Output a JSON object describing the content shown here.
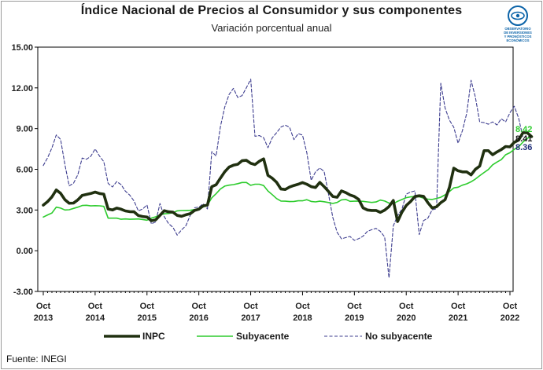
{
  "title": "Índice Nacional de Precios al Consumidor y sus componentes",
  "subtitle": "Variación porcentual anual",
  "source": "Fuente: INEGI",
  "logo": {
    "text_lines": [
      "OBSERVATORIO",
      "DE INVERSIONES",
      "Y PRONÓSTICOS",
      "ECONÓMICOS"
    ],
    "color": "#0b63a8"
  },
  "chart_data": {
    "type": "line",
    "title": "Índice Nacional de Precios al Consumidor y sus componentes",
    "subtitle": "Variación porcentual anual",
    "ylim": [
      -3,
      15
    ],
    "yticks": [
      "15.00",
      "12.00",
      "9.00",
      "6.00",
      "3.00",
      "0.00",
      "-3.00"
    ],
    "ytick_values": [
      15,
      12,
      9,
      6,
      3,
      0,
      -3
    ],
    "xtick_labels": [
      [
        "Oct",
        "2013"
      ],
      [
        "Oct",
        "2014"
      ],
      [
        "Oct",
        "2015"
      ],
      [
        "Oct",
        "2016"
      ],
      [
        "Oct",
        "2017"
      ],
      [
        "Oct",
        "2018"
      ],
      [
        "Oct",
        "2019"
      ],
      [
        "Oct",
        "2020"
      ],
      [
        "Oct",
        "2021"
      ],
      [
        "Oct",
        "2022"
      ]
    ],
    "x_start": "2013-10",
    "x_end": "2022-10",
    "grid": false,
    "legend_position": "bottom",
    "series": [
      {
        "name": "INPC",
        "color": "#203010",
        "style": "solid-thick",
        "end_label": "8.41",
        "values": [
          3.36,
          3.62,
          3.97,
          4.48,
          4.23,
          3.76,
          3.5,
          3.51,
          3.75,
          4.07,
          4.15,
          4.22,
          4.32,
          4.22,
          4.17,
          3.07,
          3.0,
          3.14,
          3.06,
          2.93,
          2.88,
          2.87,
          2.59,
          2.52,
          2.48,
          2.21,
          2.27,
          2.61,
          2.95,
          2.87,
          2.84,
          2.6,
          2.54,
          2.65,
          2.73,
          2.97,
          3.06,
          3.31,
          3.36,
          4.72,
          4.86,
          5.35,
          5.82,
          6.16,
          6.3,
          6.37,
          6.63,
          6.66,
          6.44,
          6.35,
          6.59,
          6.77,
          5.55,
          5.34,
          5.04,
          4.55,
          4.51,
          4.69,
          4.81,
          4.9,
          5.02,
          4.9,
          4.72,
          4.66,
          5.04,
          4.72,
          4.37,
          4.0,
          3.94,
          4.41,
          4.28,
          4.11,
          4.0,
          3.78,
          3.16,
          3.0,
          2.97,
          2.97,
          2.83,
          2.99,
          3.25,
          3.7,
          2.15,
          2.84,
          3.33,
          3.62,
          3.99,
          4.05,
          4.01,
          3.54,
          3.15,
          3.24,
          3.54,
          3.76,
          4.67,
          6.08,
          5.89,
          5.81,
          5.81,
          5.59,
          6.0,
          6.24,
          7.37,
          7.37,
          7.07,
          7.28,
          7.45,
          7.68,
          7.65,
          7.99,
          8.15,
          8.7,
          8.7,
          8.41
        ]
      },
      {
        "name": "Subyacente",
        "color": "#2ecc2e",
        "style": "solid",
        "end_label": "8.42",
        "values": [
          2.48,
          2.64,
          2.78,
          3.21,
          3.14,
          3.0,
          3.02,
          3.12,
          3.21,
          3.33,
          3.35,
          3.3,
          3.32,
          3.31,
          3.27,
          2.4,
          2.4,
          2.4,
          2.32,
          2.34,
          2.32,
          2.33,
          2.34,
          2.3,
          2.25,
          2.4,
          2.5,
          2.64,
          2.72,
          2.75,
          2.8,
          2.94,
          2.96,
          2.97,
          2.98,
          3.03,
          3.07,
          3.22,
          3.36,
          3.9,
          4.2,
          4.55,
          4.76,
          4.83,
          4.87,
          4.94,
          5.03,
          5.03,
          4.82,
          4.9,
          4.9,
          4.8,
          4.4,
          4.13,
          3.84,
          3.66,
          3.65,
          3.62,
          3.63,
          3.68,
          3.68,
          3.76,
          3.63,
          3.6,
          3.65,
          3.61,
          3.55,
          3.48,
          3.56,
          3.75,
          3.78,
          3.64,
          3.65,
          3.65,
          3.64,
          3.6,
          3.56,
          3.59,
          3.73,
          3.66,
          3.51,
          3.47,
          3.64,
          3.77,
          3.91,
          3.97,
          3.99,
          3.98,
          3.87,
          3.8,
          3.78,
          3.85,
          3.94,
          4.12,
          4.37,
          4.63,
          4.68,
          4.83,
          4.93,
          5.08,
          5.28,
          5.53,
          5.76,
          5.98,
          6.33,
          6.53,
          6.71,
          7.07,
          7.22,
          7.47,
          7.65,
          8.0,
          8.28,
          8.42
        ]
      },
      {
        "name": "No subyacente",
        "color": "#3d3d8f",
        "style": "dashed",
        "end_label": "8.36",
        "values": [
          6.28,
          6.85,
          7.58,
          8.53,
          8.2,
          6.34,
          4.78,
          4.97,
          5.6,
          6.83,
          6.74,
          6.96,
          7.5,
          6.98,
          6.56,
          4.96,
          4.7,
          5.09,
          4.88,
          4.39,
          4.1,
          3.67,
          2.93,
          3.08,
          3.37,
          1.98,
          2.12,
          3.48,
          2.51,
          2.0,
          1.73,
          1.15,
          1.54,
          1.84,
          2.6,
          3.17,
          3.21,
          3.46,
          3.08,
          7.3,
          6.98,
          9.14,
          10.59,
          11.51,
          11.97,
          11.29,
          11.43,
          12.01,
          12.64,
          8.43,
          8.49,
          8.32,
          7.59,
          8.32,
          8.7,
          9.11,
          9.25,
          9.09,
          8.19,
          8.63,
          8.52,
          7.22,
          5.19,
          5.81,
          6.1,
          5.84,
          4.18,
          2.45,
          1.36,
          0.88,
          0.97,
          1.05,
          0.76,
          0.89,
          1.07,
          1.42,
          1.55,
          1.65,
          1.43,
          1.01,
          -2.0,
          1.83,
          2.59,
          3.05,
          4.17,
          4.32,
          4.41,
          1.19,
          2.22,
          2.4,
          3.02,
          3.09,
          12.34,
          10.51,
          9.62,
          9.1,
          7.92,
          8.85,
          10.14,
          12.56,
          11.31,
          9.48,
          9.44,
          9.32,
          9.49,
          9.27,
          9.72,
          9.49,
          10.17,
          10.65,
          9.78,
          8.36
        ]
      }
    ]
  }
}
